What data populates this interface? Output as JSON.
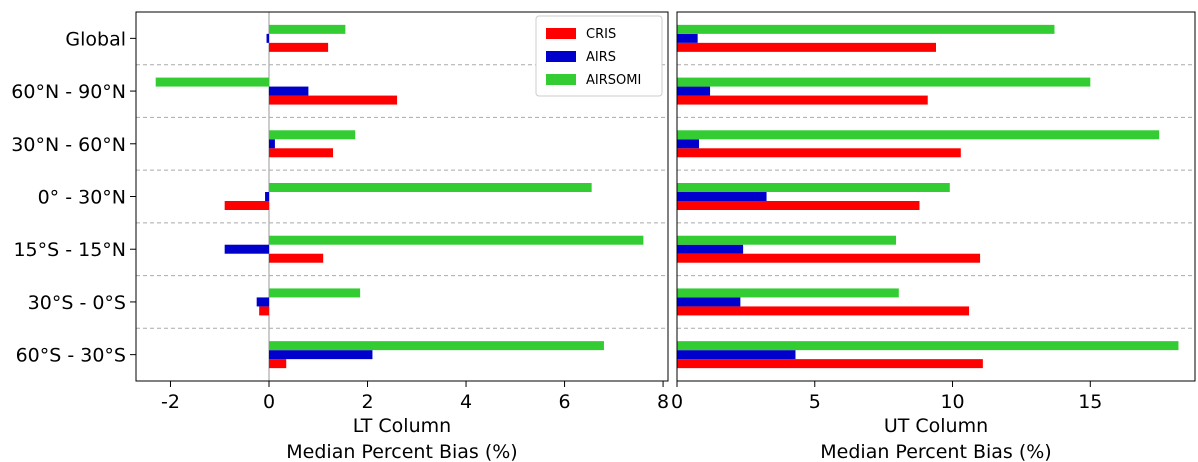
{
  "chart_data": {
    "type": "bar",
    "orientation": "horizontal",
    "categories": [
      "Global",
      "60°N - 90°N",
      "30°N - 60°N",
      "0° - 30°N",
      "15°S - 15°N",
      "30°S - 0°S",
      "60°S - 30°S"
    ],
    "legend": {
      "placement": "top-right of left panel",
      "entries": [
        "CRIS",
        "AIRS",
        "AIRSOMI"
      ]
    },
    "colors": {
      "CRIS": "#ff0000",
      "AIRS": "#0000cc",
      "AIRSOMI": "#33cc33"
    },
    "panels": [
      {
        "xlabel_line1": "LT Column",
        "xlabel_line2": "Median Percent Bias (%)",
        "xlim": [
          -2.7,
          8.1
        ],
        "xticks": [
          -2,
          0,
          2,
          4,
          6,
          8
        ],
        "xtick_labels": [
          "-2",
          "0",
          "2",
          "4",
          "6",
          "8"
        ],
        "series": [
          {
            "name": "CRIS",
            "values": [
              1.2,
              2.6,
              1.3,
              -0.9,
              1.1,
              -0.2,
              0.35
            ]
          },
          {
            "name": "AIRS",
            "values": [
              -0.05,
              0.8,
              0.12,
              -0.08,
              -0.9,
              -0.25,
              2.1
            ]
          },
          {
            "name": "AIRSOMI",
            "values": [
              1.55,
              -2.3,
              1.75,
              6.55,
              7.6,
              1.85,
              6.8
            ]
          }
        ]
      },
      {
        "xlabel_line1": "UT Column",
        "xlabel_line2": "Median Percent Bias (%)",
        "xlim": [
          0,
          18.8
        ],
        "xticks": [
          0,
          5,
          10,
          15
        ],
        "xtick_labels": [
          "0",
          "5",
          "10",
          "15"
        ],
        "series": [
          {
            "name": "CRIS",
            "values": [
              9.4,
              9.1,
              10.3,
              8.8,
              11.0,
              10.6,
              11.1
            ]
          },
          {
            "name": "AIRS",
            "values": [
              0.75,
              1.2,
              0.8,
              3.25,
              2.4,
              2.3,
              4.3
            ]
          },
          {
            "name": "AIRSOMI",
            "values": [
              13.7,
              15.0,
              17.5,
              9.9,
              7.95,
              8.05,
              18.2
            ]
          }
        ]
      }
    ],
    "grid": "dashed horizontal separators between categories"
  }
}
